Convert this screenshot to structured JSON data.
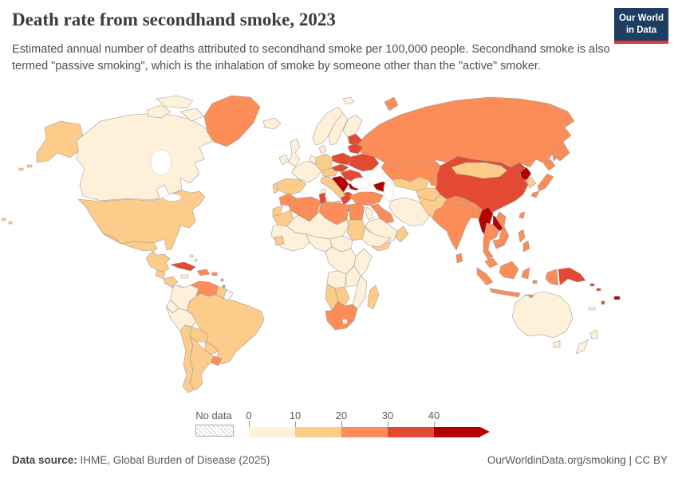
{
  "header": {
    "title": "Death rate from secondhand smoke, 2023",
    "subtitle": "Estimated annual number of deaths attributed to secondhand smoke per 100,000 people. Secondhand smoke is also termed \"passive smoking\", which is the inhalation of smoke by someone other than the \"active\" smoker."
  },
  "logo": {
    "line1": "Our World",
    "line2": "in Data",
    "bg_color": "#1d3d63",
    "accent_color": "#d93b33"
  },
  "legend": {
    "no_data_label": "No data",
    "ticks": [
      "0",
      "10",
      "20",
      "30",
      "40"
    ],
    "band_colors": [
      "#fef0d9",
      "#fdcc8a",
      "#fc8d59",
      "#e34a33",
      "#b30000"
    ],
    "no_data_pattern": "diagonal-hatch"
  },
  "footer": {
    "source_label": "Data source:",
    "source": "IHME, Global Burden of Disease (2025)",
    "right_text": "OurWorldinData.org/smoking | CC BY"
  },
  "chart_data": {
    "type": "choropleth_map",
    "title": "Death rate from secondhand smoke, 2023",
    "unit": "deaths per 100,000 people",
    "legend_bins": [
      {
        "label": "0-10",
        "color": "#fef0d9"
      },
      {
        "label": "10-20",
        "color": "#fdcc8a"
      },
      {
        "label": "20-30",
        "color": "#fc8d59"
      },
      {
        "label": "30-40",
        "color": "#e34a33"
      },
      {
        "label": "40+",
        "color": "#b30000"
      },
      {
        "label": "No data",
        "color": "hatched"
      }
    ],
    "regions": [
      {
        "id": "canada",
        "band": 0
      },
      {
        "id": "canadian-arctic",
        "band": 0
      },
      {
        "id": "alaska",
        "band": 1
      },
      {
        "id": "hawaii",
        "band": 1
      },
      {
        "id": "greenland",
        "band": 2
      },
      {
        "id": "usa",
        "band": 1
      },
      {
        "id": "mexico",
        "band": 1
      },
      {
        "id": "guatemala",
        "band": 1
      },
      {
        "id": "honduras-nicaragua",
        "band": 1
      },
      {
        "id": "costa-rica-panama",
        "band": 0
      },
      {
        "id": "cuba",
        "band": 3
      },
      {
        "id": "jamaica",
        "band": 0
      },
      {
        "id": "bahamas",
        "band": 0
      },
      {
        "id": "hispaniola",
        "band": 2
      },
      {
        "id": "puerto-rico",
        "band": 2
      },
      {
        "id": "lesser-antilles",
        "band": 2
      },
      {
        "id": "colombia",
        "band": 0
      },
      {
        "id": "venezuela",
        "band": 2
      },
      {
        "id": "guyana-suriname",
        "band": 1
      },
      {
        "id": "french-guiana",
        "band": -1
      },
      {
        "id": "brazil",
        "band": 1
      },
      {
        "id": "ecuador",
        "band": 0
      },
      {
        "id": "peru",
        "band": 0
      },
      {
        "id": "bolivia",
        "band": 1
      },
      {
        "id": "paraguay",
        "band": 1
      },
      {
        "id": "chile",
        "band": 1
      },
      {
        "id": "argentina",
        "band": 1
      },
      {
        "id": "uruguay",
        "band": 2
      },
      {
        "id": "russia",
        "band": 2
      },
      {
        "id": "novaya-zemlya",
        "band": 2
      },
      {
        "id": "svalbard",
        "band": 0
      },
      {
        "id": "kazakhstan",
        "band": 2
      },
      {
        "id": "iceland",
        "band": 0
      },
      {
        "id": "ireland",
        "band": 0
      },
      {
        "id": "uk",
        "band": 0
      },
      {
        "id": "norway",
        "band": 0
      },
      {
        "id": "sweden",
        "band": 0
      },
      {
        "id": "finland",
        "band": 0
      },
      {
        "id": "denmark",
        "band": 0
      },
      {
        "id": "baltics",
        "band": 3
      },
      {
        "id": "belarus",
        "band": 3
      },
      {
        "id": "poland",
        "band": 3
      },
      {
        "id": "germany",
        "band": 1
      },
      {
        "id": "benelux",
        "band": 0
      },
      {
        "id": "france",
        "band": 0
      },
      {
        "id": "spain",
        "band": 1
      },
      {
        "id": "portugal",
        "band": 1
      },
      {
        "id": "switzerland-austria",
        "band": 1
      },
      {
        "id": "czech-slovakia",
        "band": 3
      },
      {
        "id": "hungary-romania",
        "band": 3
      },
      {
        "id": "ukraine",
        "band": 3
      },
      {
        "id": "balkans",
        "band": 4
      },
      {
        "id": "bulgaria",
        "band": 4
      },
      {
        "id": "greece",
        "band": 3
      },
      {
        "id": "italy",
        "band": 1
      },
      {
        "id": "sardinia",
        "band": 0
      },
      {
        "id": "turkey",
        "band": 2
      },
      {
        "id": "caucasus",
        "band": 4
      },
      {
        "id": "syria",
        "band": 2
      },
      {
        "id": "iraq",
        "band": 2
      },
      {
        "id": "israel-jordan",
        "band": 0
      },
      {
        "id": "iran",
        "band": 0
      },
      {
        "id": "saudi-arabia",
        "band": 0
      },
      {
        "id": "yemen",
        "band": 1
      },
      {
        "id": "oman",
        "band": 1
      },
      {
        "id": "turkmenistan-uzbekistan",
        "band": 1
      },
      {
        "id": "kyrgyzstan-tajikistan",
        "band": 2
      },
      {
        "id": "afghanistan",
        "band": 1
      },
      {
        "id": "pakistan",
        "band": 1
      },
      {
        "id": "china",
        "band": 3
      },
      {
        "id": "mongolia",
        "band": 1
      },
      {
        "id": "india",
        "band": 2
      },
      {
        "id": "nepal",
        "band": 2
      },
      {
        "id": "bangladesh",
        "band": 2
      },
      {
        "id": "sri-lanka",
        "band": 2
      },
      {
        "id": "north-korea",
        "band": 4
      },
      {
        "id": "south-korea",
        "band": 1
      },
      {
        "id": "japan",
        "band": 2
      },
      {
        "id": "taiwan",
        "band": 2
      },
      {
        "id": "myanmar",
        "band": 4
      },
      {
        "id": "laos",
        "band": 4
      },
      {
        "id": "thailand",
        "band": 2
      },
      {
        "id": "vietnam",
        "band": 2
      },
      {
        "id": "cambodia",
        "band": 2
      },
      {
        "id": "malaysia",
        "band": 2
      },
      {
        "id": "indonesia",
        "band": 2
      },
      {
        "id": "west-papua",
        "band": 2
      },
      {
        "id": "papua-new-guinea",
        "band": 3
      },
      {
        "id": "philippines",
        "band": 2
      },
      {
        "id": "solomon-islands",
        "band": 3
      },
      {
        "id": "vanuatu",
        "band": 3
      },
      {
        "id": "fiji",
        "band": 4
      },
      {
        "id": "new-caledonia",
        "band": 0
      },
      {
        "id": "australia",
        "band": 0
      },
      {
        "id": "new-zealand",
        "band": 0
      },
      {
        "id": "morocco",
        "band": 2
      },
      {
        "id": "western-sahara",
        "band": 1
      },
      {
        "id": "algeria",
        "band": 2
      },
      {
        "id": "tunisia",
        "band": 3
      },
      {
        "id": "libya",
        "band": 2
      },
      {
        "id": "egypt",
        "band": 2
      },
      {
        "id": "mauritania",
        "band": 1
      },
      {
        "id": "mali-niger-chad",
        "band": 0
      },
      {
        "id": "west-africa",
        "band": 0
      },
      {
        "id": "guinea",
        "band": 1
      },
      {
        "id": "sudan",
        "band": 1
      },
      {
        "id": "horn-of-africa",
        "band": 0
      },
      {
        "id": "nigeria-cameroon",
        "band": 0
      },
      {
        "id": "central-africa",
        "band": 0
      },
      {
        "id": "dr-congo",
        "band": 0
      },
      {
        "id": "east-africa",
        "band": 0
      },
      {
        "id": "angola",
        "band": 0
      },
      {
        "id": "zambia",
        "band": 0
      },
      {
        "id": "mozambique-zimbabwe",
        "band": 0
      },
      {
        "id": "namibia",
        "band": 1
      },
      {
        "id": "botswana",
        "band": 1
      },
      {
        "id": "south-africa",
        "band": 2
      },
      {
        "id": "lesotho",
        "band": 0
      },
      {
        "id": "madagascar",
        "band": 1
      }
    ]
  }
}
